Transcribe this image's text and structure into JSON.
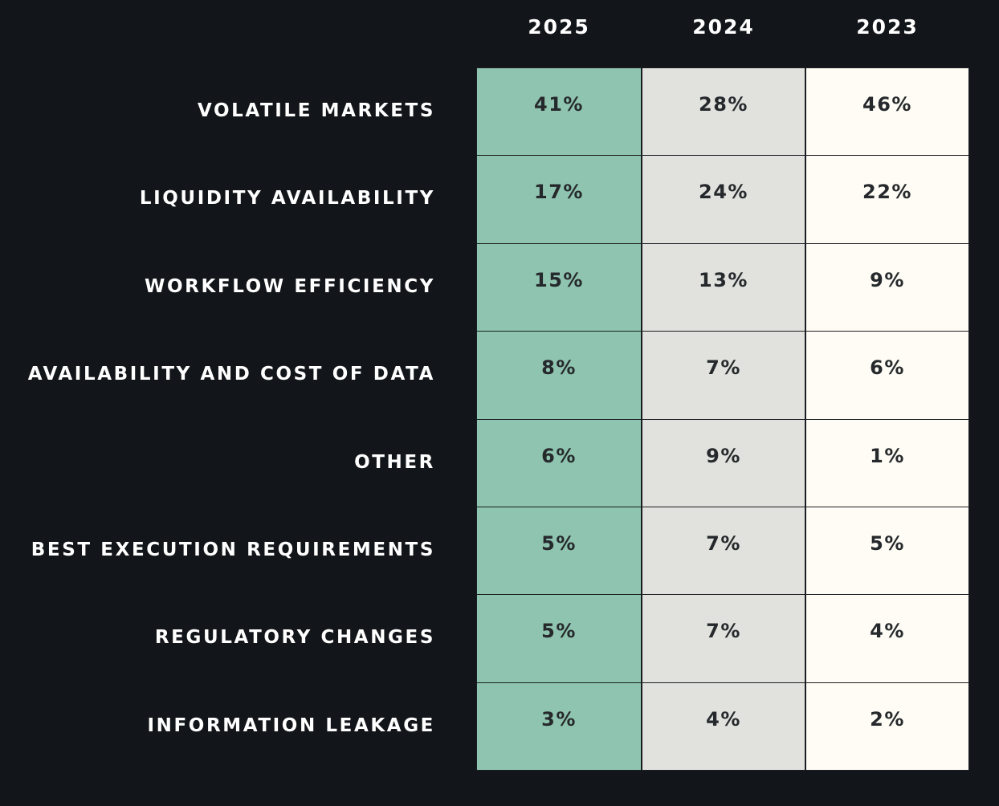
{
  "chart_data": {
    "type": "table",
    "columns": [
      "2025",
      "2024",
      "2023"
    ],
    "rows": [
      {
        "label": "VOLATILE MARKETS",
        "values": [
          "41%",
          "28%",
          "46%"
        ]
      },
      {
        "label": "LIQUIDITY AVAILABILITY",
        "values": [
          "17%",
          "24%",
          "22%"
        ]
      },
      {
        "label": "WORKFLOW EFFICIENCY",
        "values": [
          "15%",
          "13%",
          "9%"
        ]
      },
      {
        "label": "AVAILABILITY AND COST OF DATA",
        "values": [
          "8%",
          "7%",
          "6%"
        ]
      },
      {
        "label": "OTHER",
        "values": [
          "6%",
          "9%",
          "1%"
        ]
      },
      {
        "label": "BEST EXECUTION REQUIREMENTS",
        "values": [
          "5%",
          "7%",
          "5%"
        ]
      },
      {
        "label": "REGULATORY CHANGES",
        "values": [
          "5%",
          "7%",
          "4%"
        ]
      },
      {
        "label": "INFORMATION LEAKAGE",
        "values": [
          "3%",
          "4%",
          "2%"
        ]
      }
    ],
    "column_colors": [
      "#8fc5b0",
      "#e1e2de",
      "#fefcf5"
    ],
    "background_color": "#121519"
  }
}
